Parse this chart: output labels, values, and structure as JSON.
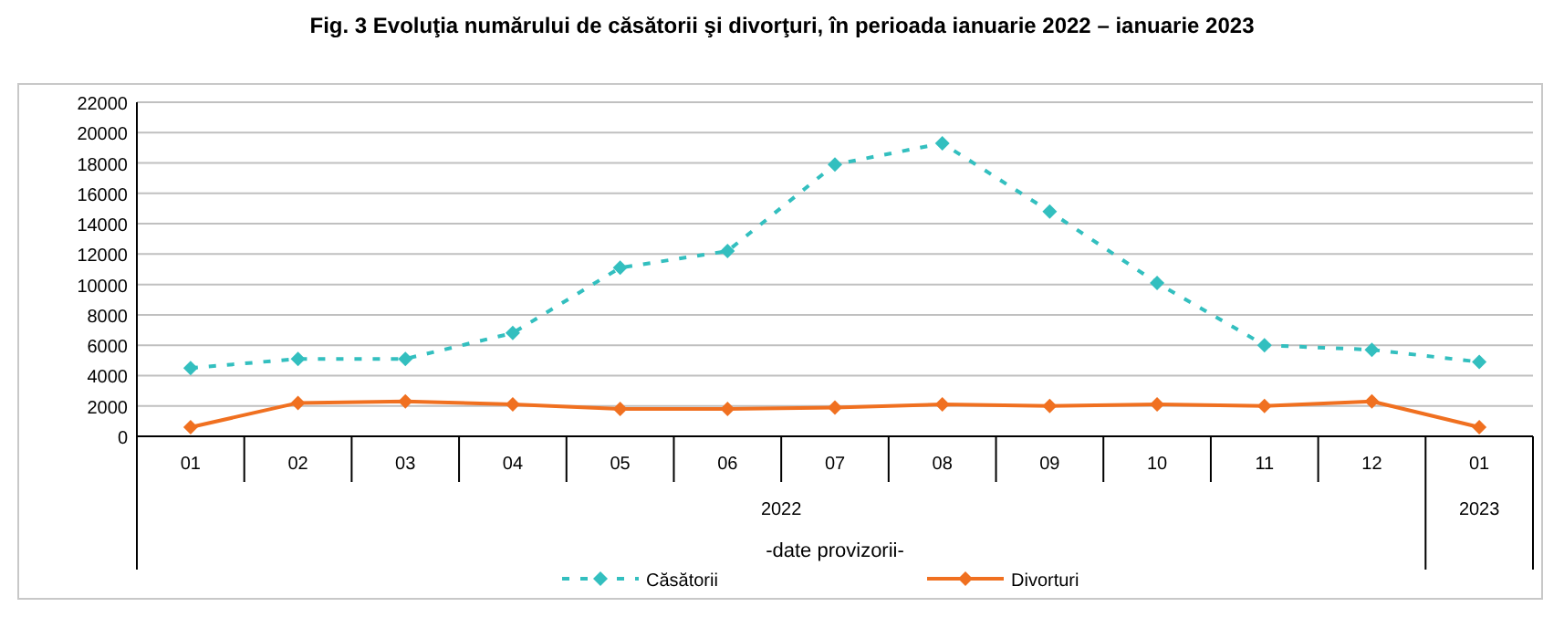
{
  "chart_data": {
    "type": "line",
    "title": "Fig. 3 Evoluţia numărului de căsătorii şi divorţuri, în perioada ianuarie 2022 – ianuarie 2023",
    "categories": [
      "01",
      "02",
      "03",
      "04",
      "05",
      "06",
      "07",
      "08",
      "09",
      "10",
      "11",
      "12",
      "01"
    ],
    "series": [
      {
        "name": "Căsătorii",
        "color": "#33bfbf",
        "line_style": "dashed",
        "marker": "diamond",
        "values": [
          4500,
          5100,
          5100,
          6800,
          11100,
          12200,
          17900,
          19300,
          14800,
          10100,
          6000,
          5700,
          4900
        ]
      },
      {
        "name": "Divorturi",
        "color": "#f07020",
        "line_style": "solid",
        "marker": "diamond",
        "values": [
          600,
          2200,
          2300,
          2100,
          1800,
          1800,
          1900,
          2100,
          2000,
          2100,
          2000,
          2300,
          600
        ]
      }
    ],
    "ylim": [
      0,
      22000
    ],
    "yticks": [
      0,
      2000,
      4000,
      6000,
      8000,
      10000,
      12000,
      14000,
      16000,
      18000,
      20000,
      22000
    ],
    "grid": "y",
    "legend": "bottom",
    "annotations": [
      "2022",
      "2023",
      "-date provizorii-"
    ]
  }
}
